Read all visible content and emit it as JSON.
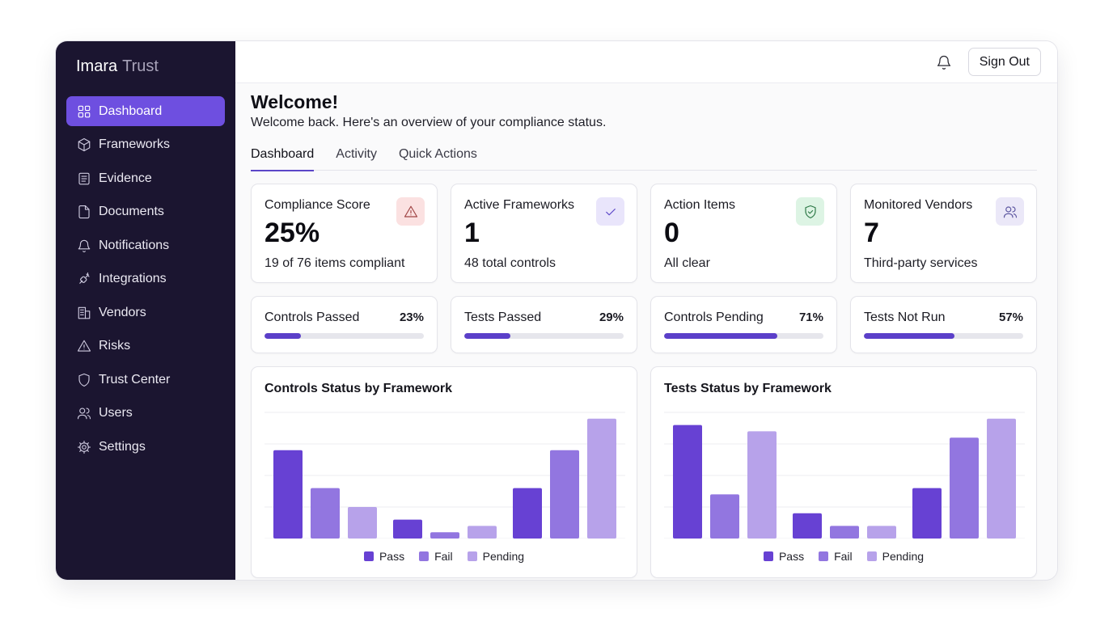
{
  "brand": {
    "name": "Imara",
    "suffix": "Trust"
  },
  "sidebar": {
    "items": [
      {
        "label": "Dashboard",
        "icon": "grid-icon",
        "active": true
      },
      {
        "label": "Frameworks",
        "icon": "box-icon"
      },
      {
        "label": "Evidence",
        "icon": "file-text-icon"
      },
      {
        "label": "Documents",
        "icon": "file-icon"
      },
      {
        "label": "Notifications",
        "icon": "bell-icon"
      },
      {
        "label": "Integrations",
        "icon": "plug-icon"
      },
      {
        "label": "Vendors",
        "icon": "building-icon"
      },
      {
        "label": "Risks",
        "icon": "warning-icon"
      },
      {
        "label": "Trust Center",
        "icon": "shield-icon"
      },
      {
        "label": "Users",
        "icon": "users-icon"
      },
      {
        "label": "Settings",
        "icon": "gear-icon"
      }
    ]
  },
  "topbar": {
    "signout_label": "Sign Out"
  },
  "welcome": {
    "title": "Welcome!",
    "subtitle": "Welcome back. Here's an overview of your compliance status."
  },
  "tabs": [
    {
      "label": "Dashboard",
      "active": true
    },
    {
      "label": "Activity"
    },
    {
      "label": "Quick Actions"
    }
  ],
  "stats": [
    {
      "label": "Compliance Score",
      "value": "25%",
      "desc": "19 of 76 items compliant",
      "icon": "warning-icon",
      "color": "#fbe1e1"
    },
    {
      "label": "Active Frameworks",
      "value": "1",
      "desc": "48 total controls",
      "icon": "check-icon",
      "color": "#e9e5fb"
    },
    {
      "label": "Action Items",
      "value": "0",
      "desc": "All clear",
      "icon": "shield-check-icon",
      "color": "#ddf4e4"
    },
    {
      "label": "Monitored Vendors",
      "value": "7",
      "desc": "Third-party services",
      "icon": "users-icon",
      "color": "#ebe8f8"
    }
  ],
  "progress": [
    {
      "label": "Controls Passed",
      "pct": "23%",
      "value": 23
    },
    {
      "label": "Tests Passed",
      "pct": "29%",
      "value": 29
    },
    {
      "label": "Controls Pending",
      "pct": "71%",
      "value": 71
    },
    {
      "label": "Tests Not Run",
      "pct": "57%",
      "value": 57
    }
  ],
  "chart_colors": {
    "Pass": "#6741d3",
    "Fail": "#9276e0",
    "Pending": "#b7a2ea"
  },
  "chart_data": [
    {
      "type": "bar",
      "title": "Controls Status by Framework",
      "categories": [
        "",
        "",
        ""
      ],
      "series": [
        {
          "name": "Pass",
          "values": [
            14,
            3,
            8
          ]
        },
        {
          "name": "Fail",
          "values": [
            8,
            1,
            14
          ]
        },
        {
          "name": "Pending",
          "values": [
            5,
            2,
            19
          ]
        }
      ],
      "ylim": [
        0,
        20
      ],
      "grid": true,
      "legend": "bottom"
    },
    {
      "type": "bar",
      "title": "Tests Status by Framework",
      "categories": [
        "",
        "",
        ""
      ],
      "series": [
        {
          "name": "Pass",
          "values": [
            18,
            4,
            8
          ]
        },
        {
          "name": "Fail",
          "values": [
            7,
            2,
            16
          ]
        },
        {
          "name": "Pending",
          "values": [
            17,
            2,
            19
          ]
        }
      ],
      "ylim": [
        0,
        20
      ],
      "grid": true,
      "legend": "bottom"
    }
  ]
}
